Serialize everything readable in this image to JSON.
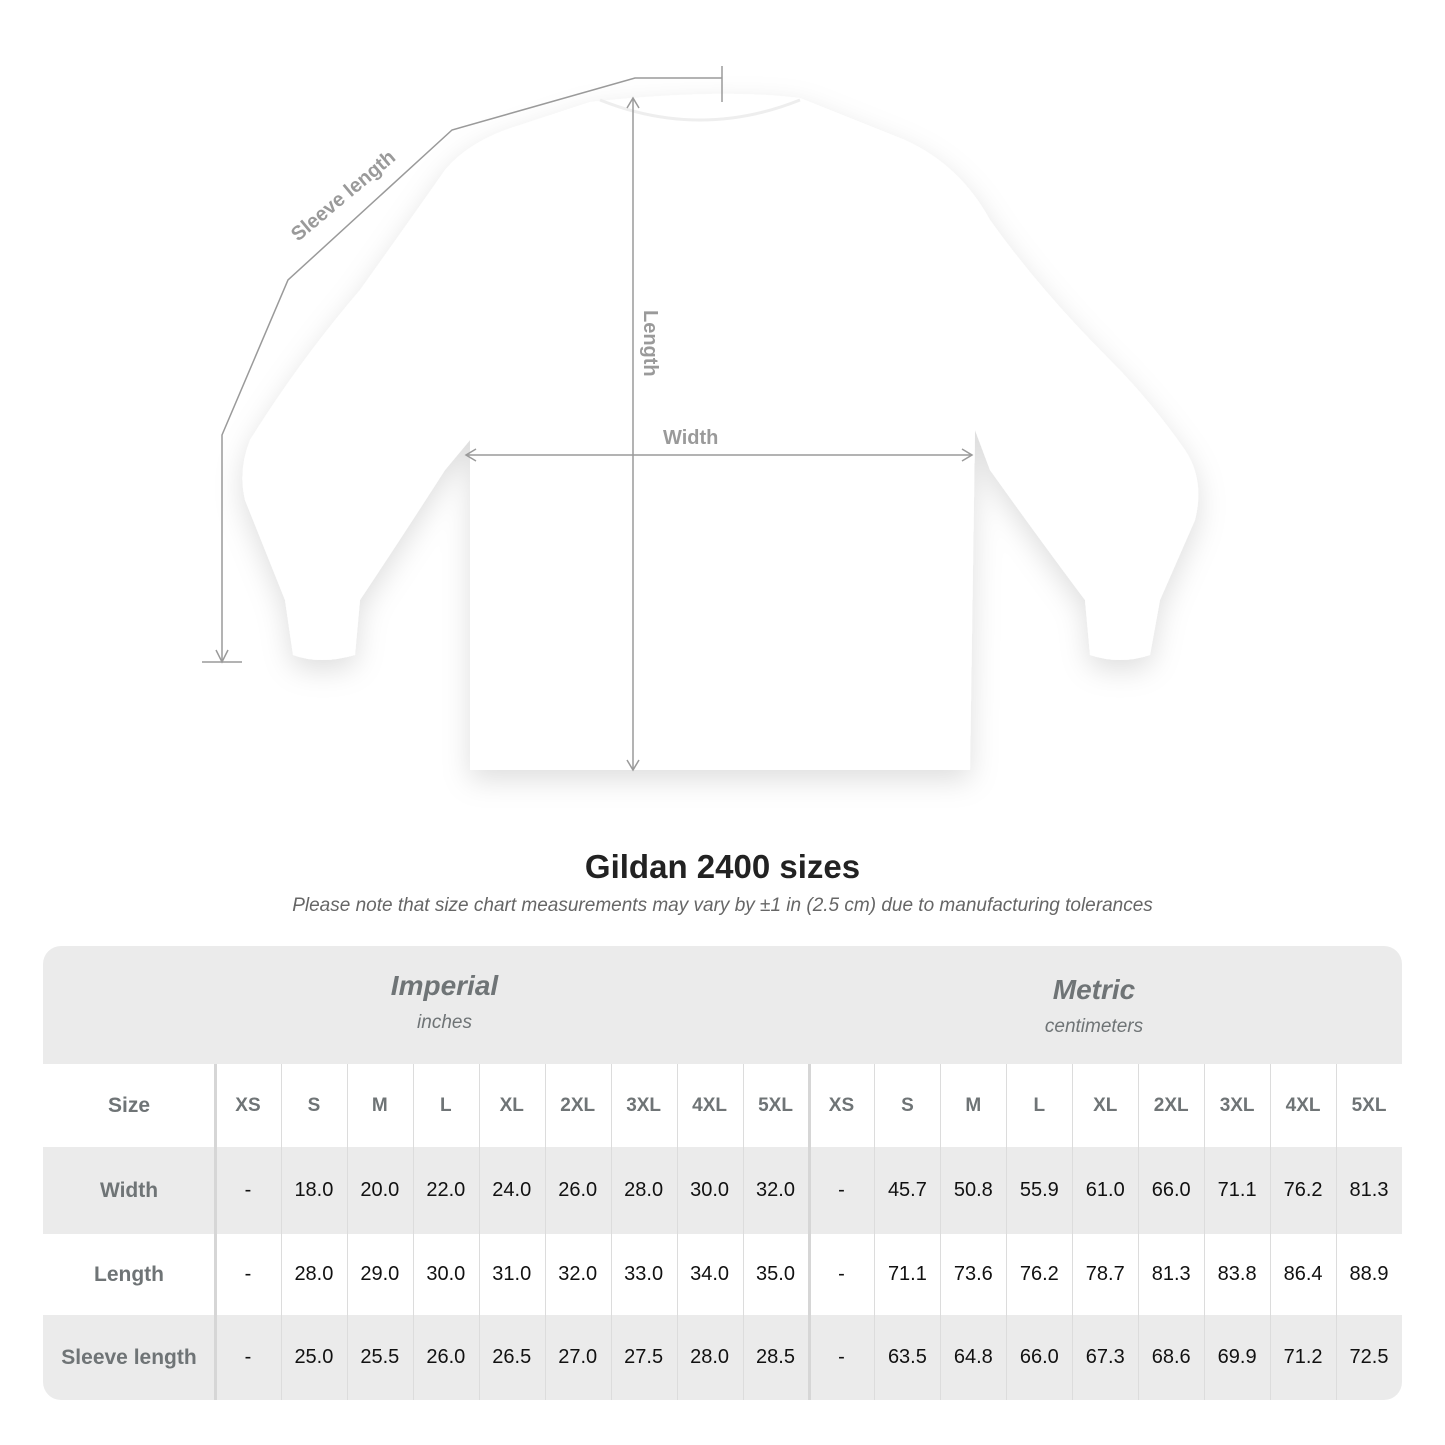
{
  "diagram": {
    "labels": {
      "sleeve": "Sleeve length",
      "length": "Length",
      "width": "Width"
    },
    "line_color": "#9a9a9a"
  },
  "title": "Gildan 2400 sizes",
  "subtitle": "Please note that size chart measurements may vary by ±1 in (2.5 cm) due to manufacturing tolerances",
  "table": {
    "imperial": {
      "name": "Imperial",
      "unit": "inches"
    },
    "metric": {
      "name": "Metric",
      "unit": "centimeters"
    },
    "size_label": "Size",
    "sizes": [
      "XS",
      "S",
      "M",
      "L",
      "XL",
      "2XL",
      "3XL",
      "4XL",
      "5XL"
    ],
    "rows": [
      {
        "label": "Width",
        "imperial": [
          "-",
          "18.0",
          "20.0",
          "22.0",
          "24.0",
          "26.0",
          "28.0",
          "30.0",
          "32.0"
        ],
        "metric": [
          "-",
          "45.7",
          "50.8",
          "55.9",
          "61.0",
          "66.0",
          "71.1",
          "76.2",
          "81.3"
        ]
      },
      {
        "label": "Length",
        "imperial": [
          "-",
          "28.0",
          "29.0",
          "30.0",
          "31.0",
          "32.0",
          "33.0",
          "34.0",
          "35.0"
        ],
        "metric": [
          "-",
          "71.1",
          "73.6",
          "76.2",
          "78.7",
          "81.3",
          "83.8",
          "86.4",
          "88.9"
        ]
      },
      {
        "label": "Sleeve length",
        "imperial": [
          "-",
          "25.0",
          "25.5",
          "26.0",
          "26.5",
          "27.0",
          "27.5",
          "28.0",
          "28.5"
        ],
        "metric": [
          "-",
          "63.5",
          "64.8",
          "66.0",
          "67.3",
          "68.6",
          "69.9",
          "71.2",
          "72.5"
        ]
      }
    ],
    "band_color": "#ebebeb",
    "header_text_color": "#6f7476"
  }
}
